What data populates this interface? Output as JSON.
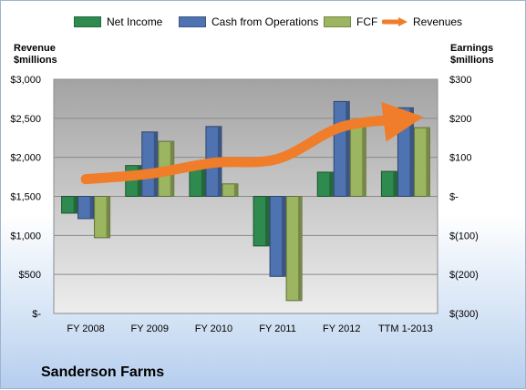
{
  "chart_data": {
    "type": "bar",
    "title": "",
    "company": "Sanderson Farms",
    "categories": [
      "FY 2008",
      "FY 2009",
      "FY 2010",
      "FY 2011",
      "FY 2012",
      "TTM 1-2013"
    ],
    "series": [
      {
        "name": "Net Income",
        "axis": "right",
        "kind": "bar",
        "color": "#2e8a4e",
        "values": [
          -43,
          79,
          80,
          -127,
          62,
          64
        ]
      },
      {
        "name": "Cash from Operations",
        "axis": "right",
        "kind": "bar",
        "color": "#4f72b0",
        "values": [
          -57,
          165,
          179,
          -205,
          243,
          227
        ]
      },
      {
        "name": "FCF",
        "axis": "right",
        "kind": "bar",
        "color": "#9cb560",
        "values": [
          -106,
          141,
          32,
          -267,
          181,
          176
        ]
      },
      {
        "name": "Revenues",
        "axis": "left",
        "kind": "line",
        "color": "#f07d2a",
        "values": [
          1720,
          1790,
          1930,
          1980,
          2390,
          2490
        ]
      }
    ],
    "left_axis": {
      "label_line1": "Revenue",
      "label_line2": "$millions",
      "min": 0,
      "max": 3000,
      "ticks": [
        0,
        500,
        1000,
        1500,
        2000,
        2500,
        3000
      ],
      "tick_labels": [
        "$-",
        "$500",
        "$1,000",
        "$1,500",
        "$2,000",
        "$2,500",
        "$3,000"
      ]
    },
    "right_axis": {
      "label_line1": "Earnings",
      "label_line2": "$millions",
      "min": -300,
      "max": 300,
      "ticks": [
        -300,
        -200,
        -100,
        0,
        100,
        200,
        300
      ],
      "tick_labels": [
        "$(300)",
        "$(200)",
        "$(100)",
        "$-",
        "$100",
        "$200",
        "$300"
      ]
    },
    "grid": true,
    "legend_position": "top"
  }
}
